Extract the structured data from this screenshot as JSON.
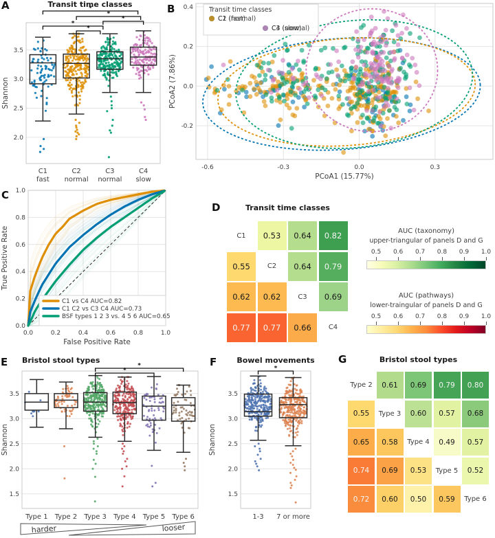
{
  "figure_bg": "#ffffff",
  "chart_data": [
    {
      "id": "A",
      "letter": "A",
      "type": "box",
      "title": "Transit time classes",
      "ylabel": "Shannon",
      "ylim": [
        1.55,
        3.97
      ],
      "yticks": [
        "2.0",
        "2.5",
        "3.0",
        "3.5"
      ],
      "grid": true,
      "groups": [
        {
          "label": "C1",
          "sublabel": "fast",
          "color": "#0173B2",
          "n": 80,
          "whislo": 2.28,
          "q1": 2.92,
          "med": 3.28,
          "q3": 3.42,
          "whishi": 3.72,
          "outliers": [
            1.75,
            1.8,
            1.85,
            1.97
          ]
        },
        {
          "label": "C2",
          "sublabel": "normal",
          "color": "#DE8F05",
          "n": 250,
          "whislo": 2.4,
          "q1": 3.02,
          "med": 3.27,
          "q3": 3.43,
          "whishi": 3.78,
          "outliers": [
            1.97,
            2.02,
            2.05,
            2.08,
            2.1,
            2.13,
            2.17,
            2.2,
            2.25,
            2.3
          ]
        },
        {
          "label": "C3",
          "sublabel": "normal",
          "color": "#029E73",
          "n": 220,
          "whislo": 2.77,
          "q1": 3.17,
          "med": 3.35,
          "q3": 3.47,
          "whishi": 3.78,
          "outliers": [
            1.66,
            2.08,
            2.12,
            2.2,
            2.3,
            2.45,
            2.5,
            2.55,
            2.62,
            2.7
          ]
        },
        {
          "label": "C4",
          "sublabel": "slow",
          "color": "#CC78BC",
          "n": 155,
          "whislo": 2.77,
          "q1": 3.24,
          "med": 3.38,
          "q3": 3.55,
          "whishi": 3.83,
          "outliers": [
            2.3,
            2.35,
            2.48,
            2.55,
            2.6
          ]
        }
      ],
      "significance": [
        {
          "pair": [
            0,
            3
          ],
          "label": "*"
        },
        {
          "pair": [
            1,
            3
          ],
          "label": "*"
        },
        {
          "pair": [
            2,
            3
          ],
          "label": "*"
        },
        {
          "pair": [
            0,
            2
          ],
          "label": "*"
        },
        {
          "pair": [
            1,
            2
          ],
          "label": "*"
        }
      ]
    },
    {
      "id": "B",
      "letter": "B",
      "type": "scatter",
      "xlabel": "PCoA1 (15.77%)",
      "ylabel": "PCoA2 (7.86%)",
      "xlim": [
        -0.646,
        0.529
      ],
      "ylim": [
        -0.37,
        0.417
      ],
      "xticks": [
        "-0.6",
        "-0.3",
        "0.0",
        "0.3"
      ],
      "yticks": [
        "-0.2",
        "0.0",
        "0.2",
        "0.4"
      ],
      "legend_title": "Transit time classes",
      "classes": [
        {
          "label": "C1 (fast)",
          "color": "#0173B2",
          "n": 85,
          "clusters": [
            [
              0.06,
              -0.05,
              0.06,
              0.09,
              0.62
            ],
            [
              -0.34,
              -0.01,
              0.13,
              0.06,
              0.38
            ]
          ],
          "ellipse": [
            -0.07,
            -0.04,
            0.55,
            0.28,
            -4
          ]
        },
        {
          "label": "C2 (normal)",
          "color": "#DE8F05",
          "n": 235,
          "clusters": [
            [
              0.06,
              -0.04,
              0.07,
              0.1,
              0.55
            ],
            [
              -0.3,
              -0.01,
              0.14,
              0.07,
              0.45
            ]
          ],
          "ellipse": [
            -0.05,
            -0.03,
            0.51,
            0.27,
            -4
          ]
        },
        {
          "label": "C3 (normal)",
          "color": "#029E73",
          "n": 195,
          "clusters": [
            [
              0.07,
              0.05,
              0.07,
              0.12,
              0.6
            ],
            [
              -0.28,
              0.04,
              0.13,
              0.08,
              0.4
            ]
          ],
          "ellipse": [
            -0.02,
            0.01,
            0.47,
            0.32,
            -6
          ]
        },
        {
          "label": "C4 (slow)",
          "color": "#CC78BC",
          "n": 150,
          "clusters": [
            [
              0.08,
              0.12,
              0.06,
              0.11,
              0.88
            ],
            [
              -0.22,
              0.03,
              0.1,
              0.06,
              0.12
            ]
          ],
          "ellipse": [
            0.05,
            0.08,
            0.26,
            0.31,
            0
          ]
        }
      ]
    },
    {
      "id": "C",
      "letter": "C",
      "type": "roc",
      "xlabel": "False Positive Rate",
      "ylabel": "True Positive Rate",
      "xticks": [
        "0.0",
        "0.2",
        "0.4",
        "0.6",
        "0.8",
        "1.0"
      ],
      "yticks": [
        "0.0",
        "0.2",
        "0.4",
        "0.6",
        "0.8",
        "1.0"
      ],
      "diagonal": true,
      "curves": [
        {
          "label": "C1 vs C4 AUC=0.82",
          "auc": 0.82,
          "color": "#DE8F05",
          "points": [
            [
              0,
              0
            ],
            [
              0.01,
              0.24
            ],
            [
              0.05,
              0.37
            ],
            [
              0.1,
              0.5
            ],
            [
              0.15,
              0.6
            ],
            [
              0.2,
              0.68
            ],
            [
              0.25,
              0.73
            ],
            [
              0.3,
              0.79
            ],
            [
              0.4,
              0.85
            ],
            [
              0.5,
              0.9
            ],
            [
              0.6,
              0.93
            ],
            [
              0.7,
              0.95
            ],
            [
              0.8,
              0.97
            ],
            [
              0.9,
              0.99
            ],
            [
              1,
              1
            ]
          ]
        },
        {
          "label": "C1 C2 vs C3 C4 AUC=0.73",
          "auc": 0.73,
          "color": "#0173B2",
          "points": [
            [
              0,
              0
            ],
            [
              0.01,
              0.09
            ],
            [
              0.05,
              0.19
            ],
            [
              0.1,
              0.3
            ],
            [
              0.2,
              0.46
            ],
            [
              0.3,
              0.58
            ],
            [
              0.4,
              0.67
            ],
            [
              0.5,
              0.75
            ],
            [
              0.6,
              0.82
            ],
            [
              0.7,
              0.88
            ],
            [
              0.8,
              0.93
            ],
            [
              0.9,
              0.97
            ],
            [
              1,
              1
            ]
          ]
        },
        {
          "label": "BSF types 1 2 3 vs. 4 5 6 AUC=0.65",
          "auc": 0.65,
          "color": "#029E73",
          "points": [
            [
              0,
              0
            ],
            [
              0.02,
              0.04
            ],
            [
              0.05,
              0.11
            ],
            [
              0.1,
              0.19
            ],
            [
              0.2,
              0.33
            ],
            [
              0.3,
              0.45
            ],
            [
              0.4,
              0.56
            ],
            [
              0.5,
              0.65
            ],
            [
              0.6,
              0.73
            ],
            [
              0.7,
              0.8
            ],
            [
              0.8,
              0.87
            ],
            [
              0.9,
              0.94
            ],
            [
              1,
              1
            ]
          ]
        }
      ]
    },
    {
      "id": "D",
      "letter": "D",
      "type": "heatmap",
      "title": "Transit time classes",
      "rows": [
        [
          {
            "label": "C1"
          },
          {
            "value": "0.53",
            "bg": "#edf7a3",
            "fg": "#1a1a1a"
          },
          {
            "value": "0.64",
            "bg": "#b4dd8d",
            "fg": "#1a1a1a"
          },
          {
            "value": "0.82",
            "bg": "#3f9f51",
            "fg": "#f5f5f5"
          }
        ],
        [
          {
            "value": "0.55",
            "bg": "#fdd970",
            "fg": "#1a1a1a"
          },
          {
            "label": "C2"
          },
          {
            "value": "0.64",
            "bg": "#b4dd8d",
            "fg": "#1a1a1a"
          },
          {
            "value": "0.79",
            "bg": "#54ae5d",
            "fg": "#f5f5f5"
          }
        ],
        [
          {
            "value": "0.62",
            "bg": "#fcba50",
            "fg": "#1a1a1a"
          },
          {
            "value": "0.62",
            "bg": "#fcba50",
            "fg": "#1a1a1a"
          },
          {
            "label": "C3"
          },
          {
            "value": "0.69",
            "bg": "#9dd388",
            "fg": "#1a1a1a"
          }
        ],
        [
          {
            "value": "0.77",
            "bg": "#f96430",
            "fg": "#f5f5f5"
          },
          {
            "value": "0.77",
            "bg": "#f96430",
            "fg": "#f5f5f5"
          },
          {
            "value": "0.66",
            "bg": "#fcab4b",
            "fg": "#1a1a1a"
          },
          {
            "label": "C4"
          }
        ]
      ]
    },
    {
      "id": "E",
      "letter": "E",
      "type": "box",
      "title": "Bristol stool types",
      "ylabel": "Shannon",
      "ylim": [
        1.21,
        3.95
      ],
      "yticks": [
        "1.5",
        "2.0",
        "2.5",
        "3.0",
        "3.5"
      ],
      "groups": [
        {
          "label": "Type 1",
          "color": "#4C72B0",
          "n": 9,
          "whislo": 2.83,
          "q1": 3.17,
          "med": 3.33,
          "q3": 3.5,
          "whishi": 3.78,
          "outliers": []
        },
        {
          "label": "Type 2",
          "color": "#DD8452",
          "n": 60,
          "whislo": 2.8,
          "q1": 3.22,
          "med": 3.37,
          "q3": 3.5,
          "whishi": 3.73,
          "outliers": [
            1.81,
            2.45
          ]
        },
        {
          "label": "Type 3",
          "color": "#55A868",
          "n": 290,
          "whislo": 2.63,
          "q1": 3.15,
          "med": 3.33,
          "q3": 3.52,
          "whishi": 3.86,
          "outliers": [
            1.35,
            1.84,
            2.0,
            2.1,
            2.18,
            2.3,
            2.35,
            2.4,
            2.45,
            2.5,
            2.55,
            2.6
          ]
        },
        {
          "label": "Type 4",
          "color": "#C44E52",
          "n": 250,
          "whislo": 2.55,
          "q1": 3.1,
          "med": 3.32,
          "q3": 3.53,
          "whishi": 3.83,
          "outliers": [
            1.65,
            1.85,
            2.0,
            2.05,
            2.15,
            2.2,
            2.3,
            2.35,
            2.4,
            2.45,
            2.5
          ]
        },
        {
          "label": "Type 5",
          "color": "#8172B3",
          "n": 65,
          "whislo": 2.37,
          "q1": 2.97,
          "med": 3.25,
          "q3": 3.45,
          "whishi": 3.84,
          "outliers": [
            1.65,
            1.72,
            2.06
          ]
        },
        {
          "label": "Type 6",
          "color": "#937860",
          "n": 60,
          "whislo": 2.33,
          "q1": 2.95,
          "med": 3.27,
          "q3": 3.42,
          "whishi": 3.67,
          "outliers": [
            1.97,
            2.05,
            2.12,
            2.2
          ]
        }
      ],
      "significance": [
        {
          "pair": [
            2,
            5
          ],
          "label": "*"
        },
        {
          "pair": [
            2,
            4
          ],
          "label": "*"
        }
      ],
      "footer": {
        "left": "harder",
        "right": "looser"
      }
    },
    {
      "id": "F",
      "letter": "F",
      "type": "box",
      "title": "Bowel movements",
      "ylabel": "Shannon",
      "ylim": [
        1.21,
        3.95
      ],
      "yticks": [
        "1.5",
        "2.0",
        "2.5",
        "3.0",
        "3.5"
      ],
      "groups": [
        {
          "label": "1-3",
          "color": "#4C72B0",
          "n": 270,
          "whislo": 2.57,
          "q1": 3.05,
          "med": 3.14,
          "q3": 3.49,
          "whishi": 3.85,
          "outliers": [
            1.97,
            2.05,
            2.1,
            2.15,
            2.2,
            2.28,
            2.35,
            2.4,
            2.45,
            2.5
          ]
        },
        {
          "label": "7 or more",
          "color": "#DD8452",
          "n": 310,
          "whislo": 2.46,
          "q1": 3.02,
          "med": 3.28,
          "q3": 3.42,
          "whishi": 3.82,
          "outliers": [
            1.33,
            1.62,
            1.67,
            1.72,
            1.78,
            1.85,
            1.92,
            1.98,
            2.02,
            2.08,
            2.12,
            2.18,
            2.25,
            2.3,
            2.35,
            2.4
          ]
        }
      ],
      "significance": [
        {
          "pair": [
            0,
            1
          ],
          "label": "*"
        }
      ]
    },
    {
      "id": "G",
      "letter": "G",
      "type": "heatmap",
      "title": "Bristol stool types",
      "rows": [
        [
          {
            "label": "Type 2"
          },
          {
            "value": "0.61",
            "bg": "#b2dc8c",
            "fg": "#1a1a1a"
          },
          {
            "value": "0.69",
            "bg": "#7dc577",
            "fg": "#1a1a1a"
          },
          {
            "value": "0.79",
            "bg": "#46a456",
            "fg": "#f5f5f5"
          },
          {
            "value": "0.80",
            "bg": "#42a152",
            "fg": "#f5f5f5"
          }
        ],
        [
          {
            "value": "0.55",
            "bg": "#fdd970",
            "fg": "#1a1a1a"
          },
          {
            "label": "Type 3"
          },
          {
            "value": "0.60",
            "bg": "#bce094",
            "fg": "#1a1a1a"
          },
          {
            "value": "0.57",
            "bg": "#e1f2a2",
            "fg": "#1a1a1a"
          },
          {
            "value": "0.68",
            "bg": "#8cca7b",
            "fg": "#1a1a1a"
          }
        ],
        [
          {
            "value": "0.65",
            "bg": "#fcad49",
            "fg": "#1a1a1a"
          },
          {
            "value": "0.58",
            "bg": "#fdc75e",
            "fg": "#1a1a1a"
          },
          {
            "label": "Type 4"
          },
          {
            "value": "0.49",
            "bg": "#f7fbc8",
            "fg": "#1a1a1a"
          },
          {
            "value": "0.57",
            "bg": "#e1f2a2",
            "fg": "#1a1a1a"
          }
        ],
        [
          {
            "value": "0.74",
            "bg": "#f97b36",
            "fg": "#f5f5f5"
          },
          {
            "value": "0.69",
            "bg": "#fba246",
            "fg": "#1a1a1a"
          },
          {
            "value": "0.53",
            "bg": "#fde285",
            "fg": "#1a1a1a"
          },
          {
            "label": "Type 5"
          },
          {
            "value": "0.52",
            "bg": "#ecf7ae",
            "fg": "#1a1a1a"
          }
        ],
        [
          {
            "value": "0.72",
            "bg": "#fa8c3d",
            "fg": "#f5f5f5"
          },
          {
            "value": "0.60",
            "bg": "#fccf67",
            "fg": "#1a1a1a"
          },
          {
            "value": "0.50",
            "bg": "#fef2aa",
            "fg": "#1a1a1a"
          },
          {
            "value": "0.59",
            "bg": "#fcc75f",
            "fg": "#1a1a1a"
          },
          {
            "label": "Type 6"
          }
        ]
      ]
    }
  ],
  "colorbars": [
    {
      "title": "AUC (taxonomy)",
      "subtitle": "upper-triangular of panels D and G",
      "ticks": [
        "0.5",
        "0.6",
        "0.7",
        "0.8",
        "0.9",
        "1.0"
      ],
      "vmin": 0.456,
      "vmax": 1.0,
      "gradient": [
        "#ffffe5",
        "#f7fcb9",
        "#d9f0a3",
        "#addd8e",
        "#78c679",
        "#41ab5d",
        "#238443",
        "#006837",
        "#004529"
      ]
    },
    {
      "title": "AUC (pathways)",
      "subtitle": "lower-traingular of panels D and G",
      "ticks": [
        "0.5",
        "0.6",
        "0.7",
        "0.8",
        "0.9",
        "1.0"
      ],
      "vmin": 0.456,
      "vmax": 1.0,
      "gradient": [
        "#ffffcc",
        "#ffeda0",
        "#fed976",
        "#feb24c",
        "#fd8d3c",
        "#fc4e2a",
        "#e31a1c",
        "#bd0026",
        "#800026"
      ]
    }
  ]
}
